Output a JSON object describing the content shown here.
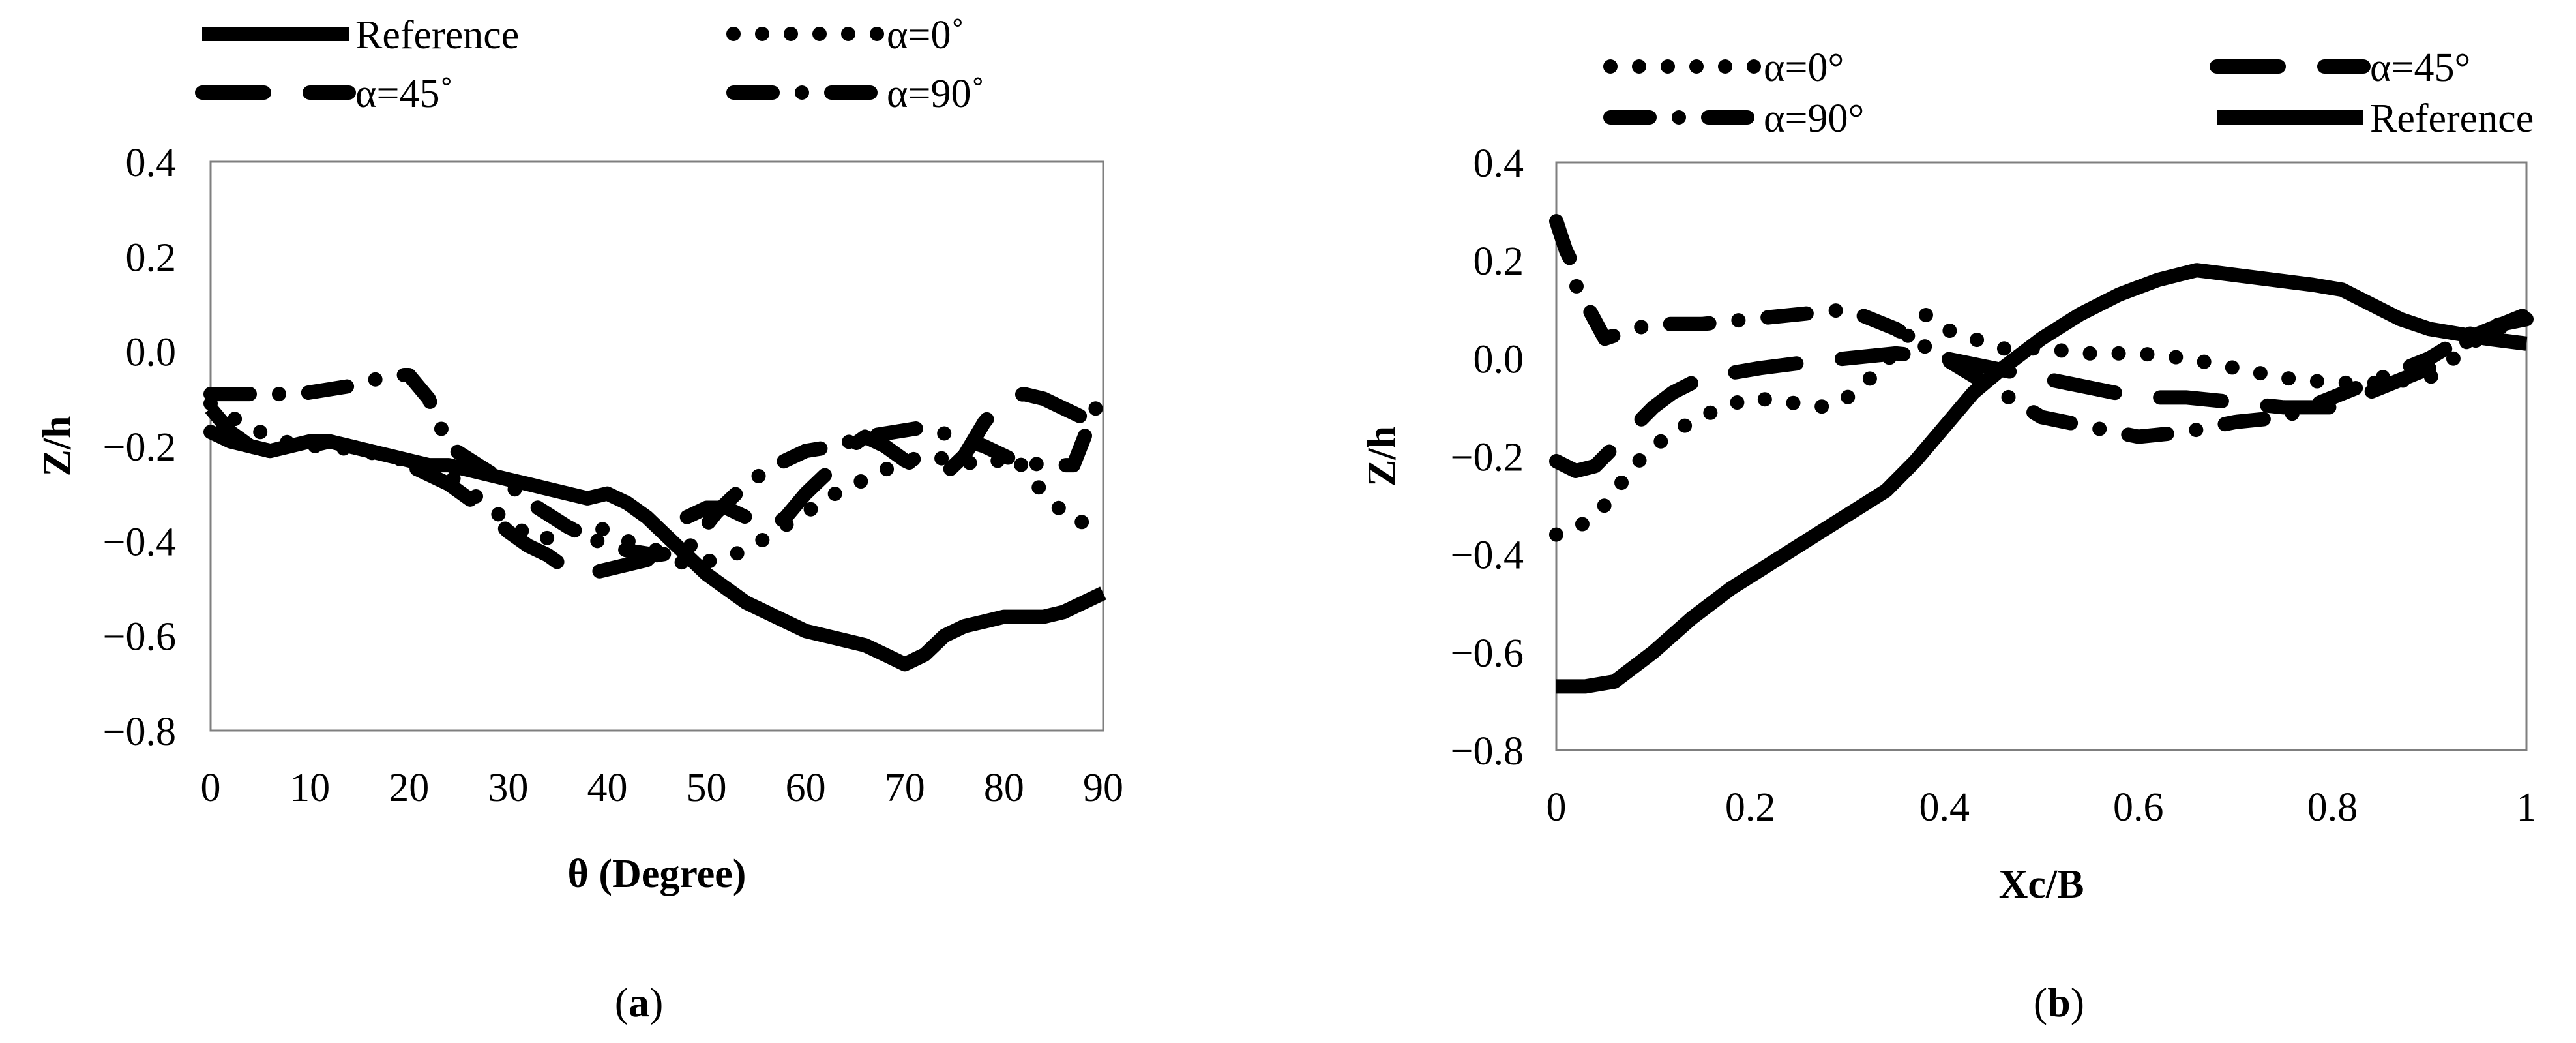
{
  "figure": {
    "caption_a_open": "(",
    "caption_a_letter": "a",
    "caption_a_close": ")",
    "caption_b_open": "(",
    "caption_b_letter": "b",
    "caption_b_close": ")"
  },
  "chart_data": [
    {
      "type": "line",
      "panel": "a",
      "xlabel": "θ (Degree)",
      "ylabel": "Z/h",
      "xlim": [
        0,
        90
      ],
      "ylim": [
        -0.8,
        0.4
      ],
      "x_ticks": [
        "0",
        "10",
        "20",
        "30",
        "40",
        "50",
        "60",
        "70",
        "80",
        "90"
      ],
      "y_ticks": [
        "0.4",
        "0.2",
        "0.0",
        "−0.2",
        "−0.4",
        "−0.6",
        "−0.8"
      ],
      "grid": false,
      "legend_position": "top",
      "series": [
        {
          "name": "Reference",
          "style": "solid",
          "x": [
            0,
            2,
            4,
            6,
            8,
            10,
            12,
            14,
            16,
            18,
            20,
            22,
            24,
            26,
            28,
            30,
            32,
            34,
            36,
            38,
            40,
            42,
            44,
            46,
            48,
            50,
            52,
            54,
            56,
            58,
            60,
            62,
            64,
            66,
            68,
            70,
            72,
            74,
            76,
            78,
            80,
            82,
            84,
            86,
            88,
            90
          ],
          "y": [
            -0.12,
            -0.17,
            -0.2,
            -0.21,
            -0.2,
            -0.19,
            -0.19,
            -0.2,
            -0.21,
            -0.22,
            -0.23,
            -0.24,
            -0.24,
            -0.25,
            -0.26,
            -0.27,
            -0.28,
            -0.29,
            -0.3,
            -0.31,
            -0.3,
            -0.32,
            -0.35,
            -0.39,
            -0.43,
            -0.47,
            -0.5,
            -0.53,
            -0.55,
            -0.57,
            -0.59,
            -0.6,
            -0.61,
            -0.62,
            -0.64,
            -0.66,
            -0.64,
            -0.6,
            -0.58,
            -0.57,
            -0.56,
            -0.56,
            -0.56,
            -0.55,
            -0.53,
            -0.51
          ]
        },
        {
          "name": "α=0˚",
          "style": "dotted",
          "x": [
            0,
            3,
            6,
            9,
            12,
            15,
            18,
            21,
            24,
            27,
            30,
            33,
            36,
            39,
            42,
            45,
            48,
            51,
            54,
            57,
            60,
            63,
            66,
            69,
            72,
            75,
            78,
            81,
            84,
            87,
            90
          ],
          "y": [
            -0.11,
            -0.15,
            -0.18,
            -0.2,
            -0.2,
            -0.21,
            -0.22,
            -0.24,
            -0.26,
            -0.31,
            -0.36,
            -0.4,
            -0.38,
            -0.37,
            -0.4,
            -0.42,
            -0.45,
            -0.44,
            -0.42,
            -0.38,
            -0.34,
            -0.3,
            -0.27,
            -0.24,
            -0.22,
            -0.23,
            -0.24,
            -0.22,
            -0.3,
            -0.36,
            -0.36
          ]
        },
        {
          "name": "α=45˚",
          "style": "long-dash",
          "x": [
            0,
            2,
            4,
            6,
            8,
            10,
            12,
            14,
            16,
            18,
            20,
            22,
            24,
            26,
            28,
            30,
            32,
            34,
            36,
            38,
            40,
            42,
            44,
            46,
            48,
            50,
            52,
            54,
            56,
            58,
            60,
            62,
            64,
            66,
            68,
            70,
            72,
            74,
            76,
            78,
            80,
            82,
            84,
            86,
            88,
            90
          ],
          "y": [
            -0.17,
            -0.19,
            -0.2,
            -0.21,
            -0.21,
            -0.2,
            -0.19,
            -0.2,
            -0.21,
            -0.22,
            -0.24,
            -0.26,
            -0.28,
            -0.31,
            -0.34,
            -0.38,
            -0.41,
            -0.43,
            -0.46,
            -0.47,
            -0.46,
            -0.45,
            -0.44,
            -0.4,
            -0.35,
            -0.33,
            -0.33,
            -0.35,
            -0.38,
            -0.35,
            -0.3,
            -0.26,
            -0.21,
            -0.18,
            -0.2,
            -0.23,
            -0.25,
            -0.26,
            -0.22,
            -0.15,
            -0.1,
            -0.09,
            -0.1,
            -0.12,
            -0.14,
            -0.14
          ]
        },
        {
          "name": "α=90˚",
          "style": "dash-dot",
          "x": [
            0,
            3,
            6,
            9,
            12,
            15,
            18,
            20,
            22,
            24,
            27,
            30,
            33,
            36,
            39,
            42,
            45,
            48,
            51,
            54,
            57,
            60,
            63,
            66,
            69,
            72,
            75,
            78,
            81,
            84,
            87,
            90
          ],
          "y": [
            -0.09,
            -0.09,
            -0.09,
            -0.09,
            -0.08,
            -0.07,
            -0.05,
            -0.05,
            -0.1,
            -0.2,
            -0.24,
            -0.28,
            -0.33,
            -0.37,
            -0.4,
            -0.42,
            -0.43,
            -0.42,
            -0.34,
            -0.28,
            -0.24,
            -0.21,
            -0.2,
            -0.18,
            -0.17,
            -0.16,
            -0.18,
            -0.2,
            -0.23,
            -0.24,
            -0.24,
            -0.08
          ]
        }
      ]
    },
    {
      "type": "line",
      "panel": "b",
      "xlabel": "Xc/B",
      "ylabel": "Z/h",
      "xlim": [
        0,
        1
      ],
      "ylim": [
        -0.8,
        0.4
      ],
      "x_ticks": [
        "0",
        "0.2",
        "0.4",
        "0.6",
        "0.8",
        "1"
      ],
      "y_ticks": [
        "0.4",
        "0.2",
        "0.0",
        "−0.2",
        "−0.4",
        "−0.6",
        "−0.8"
      ],
      "grid": false,
      "legend_position": "top",
      "series": [
        {
          "name": "α=0°",
          "style": "dotted",
          "x": [
            0,
            0.02,
            0.05,
            0.08,
            0.1,
            0.13,
            0.16,
            0.2,
            0.24,
            0.28,
            0.3,
            0.33,
            0.36,
            0.38,
            0.4,
            0.43,
            0.46,
            0.5,
            0.55,
            0.6,
            0.65,
            0.7,
            0.75,
            0.8,
            0.85,
            0.9,
            0.95,
            1.0
          ],
          "y": [
            -0.36,
            -0.35,
            -0.3,
            -0.22,
            -0.18,
            -0.14,
            -0.11,
            -0.08,
            -0.09,
            -0.1,
            -0.08,
            -0.03,
            0.04,
            0.09,
            0.06,
            0.04,
            0.02,
            0.02,
            0.01,
            0.01,
            0.0,
            -0.02,
            -0.04,
            -0.05,
            -0.05,
            -0.04,
            0.04,
            0.09
          ]
        },
        {
          "name": "α=45°",
          "style": "long-dash",
          "x": [
            0,
            0.02,
            0.04,
            0.06,
            0.08,
            0.1,
            0.12,
            0.15,
            0.18,
            0.21,
            0.25,
            0.3,
            0.35,
            0.4,
            0.45,
            0.5,
            0.55,
            0.6,
            0.65,
            0.7,
            0.75,
            0.8,
            0.85,
            0.9,
            0.95,
            1.0
          ],
          "y": [
            -0.21,
            -0.23,
            -0.22,
            -0.18,
            -0.14,
            -0.1,
            -0.07,
            -0.04,
            -0.03,
            -0.02,
            -0.01,
            0.0,
            0.01,
            0.0,
            -0.02,
            -0.04,
            -0.06,
            -0.08,
            -0.08,
            -0.09,
            -0.1,
            -0.1,
            -0.06,
            -0.02,
            0.05,
            0.09
          ]
        },
        {
          "name": "α=90°",
          "style": "dash-dot",
          "x": [
            0,
            0.005,
            0.01,
            0.015,
            0.02,
            0.05,
            0.08,
            0.1,
            0.12,
            0.15,
            0.2,
            0.25,
            0.3,
            0.35,
            0.4,
            0.45,
            0.5,
            0.55,
            0.6,
            0.65,
            0.7,
            0.75,
            0.8,
            0.85,
            0.9,
            0.95,
            1.0
          ],
          "y": [
            0.28,
            0.25,
            0.22,
            0.2,
            0.15,
            0.04,
            0.06,
            0.07,
            0.07,
            0.07,
            0.08,
            0.09,
            0.1,
            0.06,
            0.0,
            -0.06,
            -0.12,
            -0.14,
            -0.16,
            -0.15,
            -0.13,
            -0.12,
            -0.08,
            -0.04,
            0.0,
            0.06,
            0.08
          ]
        },
        {
          "name": "Reference",
          "style": "solid",
          "x": [
            0,
            0.03,
            0.06,
            0.1,
            0.14,
            0.18,
            0.22,
            0.26,
            0.3,
            0.34,
            0.37,
            0.4,
            0.43,
            0.46,
            0.5,
            0.54,
            0.58,
            0.62,
            0.66,
            0.7,
            0.74,
            0.78,
            0.81,
            0.84,
            0.87,
            0.9,
            0.93,
            0.96,
            1.0
          ],
          "y": [
            -0.67,
            -0.67,
            -0.66,
            -0.6,
            -0.53,
            -0.47,
            -0.42,
            -0.37,
            -0.32,
            -0.27,
            -0.21,
            -0.14,
            -0.07,
            -0.02,
            0.04,
            0.09,
            0.13,
            0.16,
            0.18,
            0.17,
            0.16,
            0.15,
            0.14,
            0.11,
            0.08,
            0.06,
            0.05,
            0.04,
            0.03
          ]
        }
      ]
    }
  ]
}
